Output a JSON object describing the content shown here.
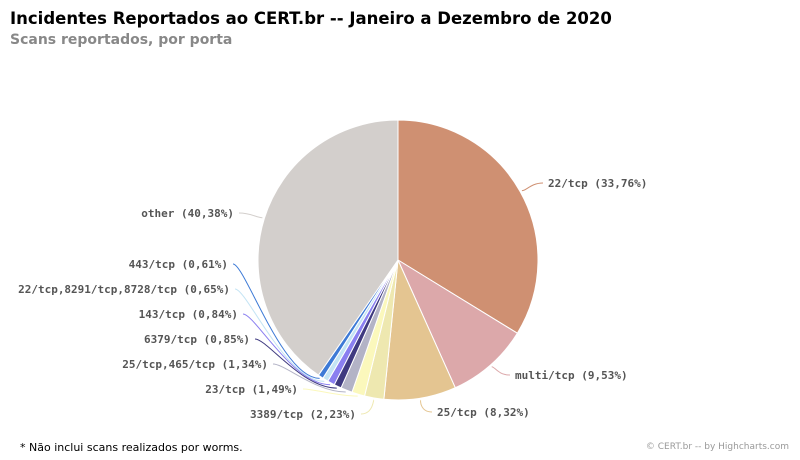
{
  "title": "Incidentes Reportados ao CERT.br -- Janeiro a Dezembro de 2020",
  "subtitle": "Scans reportados, por porta",
  "footnote": "* Não inclui scans realizados por worms.",
  "credits": "© CERT.br -- by Highcharts.com",
  "chart_data": {
    "type": "pie",
    "title": "Incidentes Reportados ao CERT.br -- Janeiro a Dezembro de 2020",
    "subtitle": "Scans reportados, por porta",
    "slices": [
      {
        "name": "22/tcp",
        "value": 33.76,
        "label": "22/tcp (33,76%)",
        "color": "#cf9072"
      },
      {
        "name": "multi/tcp",
        "value": 9.53,
        "label": "multi/tcp (9,53%)",
        "color": "#dca8aa"
      },
      {
        "name": "25/tcp",
        "value": 8.32,
        "label": "25/tcp (8,32%)",
        "color": "#e4c591"
      },
      {
        "name": "3389/tcp",
        "value": 2.23,
        "label": "3389/tcp (2,23%)",
        "color": "#eee8b0"
      },
      {
        "name": "23/tcp",
        "value": 1.49,
        "label": "23/tcp (1,49%)",
        "color": "#fbf8bc"
      },
      {
        "name": "25/tcp,465/tcp",
        "value": 1.34,
        "label": "25/tcp,465/tcp (1,34%)",
        "color": "#b3b3c6"
      },
      {
        "name": "6379/tcp",
        "value": 0.85,
        "label": "6379/tcp (0,85%)",
        "color": "#3f3a80"
      },
      {
        "name": "143/tcp",
        "value": 0.84,
        "label": "143/tcp (0,84%)",
        "color": "#8a7ff0"
      },
      {
        "name": "22/tcp,8291/tcp,8728/tcp",
        "value": 0.65,
        "label": "22/tcp,8291/tcp,8728/tcp (0,65%)",
        "color": "#c4e4f4"
      },
      {
        "name": "443/tcp",
        "value": 0.61,
        "label": "443/tcp (0,61%)",
        "color": "#3d7ad6"
      },
      {
        "name": "other",
        "value": 40.38,
        "label": "other (40,38%)",
        "color": "#d3cfcc"
      }
    ]
  }
}
